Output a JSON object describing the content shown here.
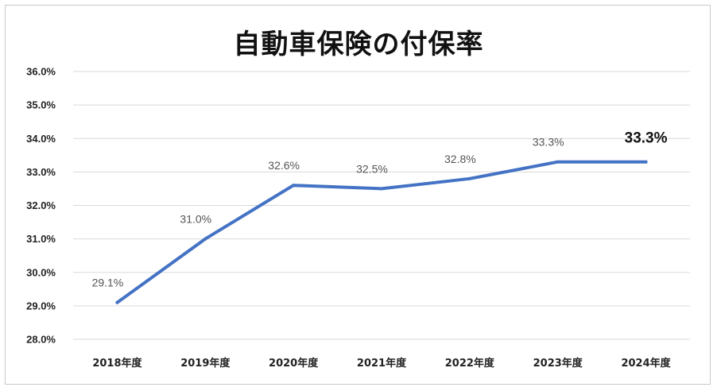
{
  "chart_data": {
    "type": "line",
    "title": "自動車保険の付保率",
    "categories": [
      "2018年度",
      "2019年度",
      "2020年度",
      "2021年度",
      "2022年度",
      "2023年度",
      "2024年度"
    ],
    "values": [
      29.1,
      31.0,
      32.6,
      32.5,
      32.8,
      33.3,
      33.3
    ],
    "data_labels": [
      "29.1%",
      "31.0%",
      "32.6%",
      "32.5%",
      "32.8%",
      "33.3%",
      "33.3%"
    ],
    "y_ticks": [
      "28.0%",
      "29.0%",
      "30.0%",
      "31.0%",
      "32.0%",
      "33.0%",
      "34.0%",
      "35.0%",
      "36.0%"
    ],
    "ylim": [
      28.0,
      36.0
    ],
    "y_tick_step": 1.0,
    "grid": true,
    "legend": "none",
    "line_color": "#4472C4",
    "grid_color": "#d9d9d9",
    "emphasized_label_index": 6
  }
}
